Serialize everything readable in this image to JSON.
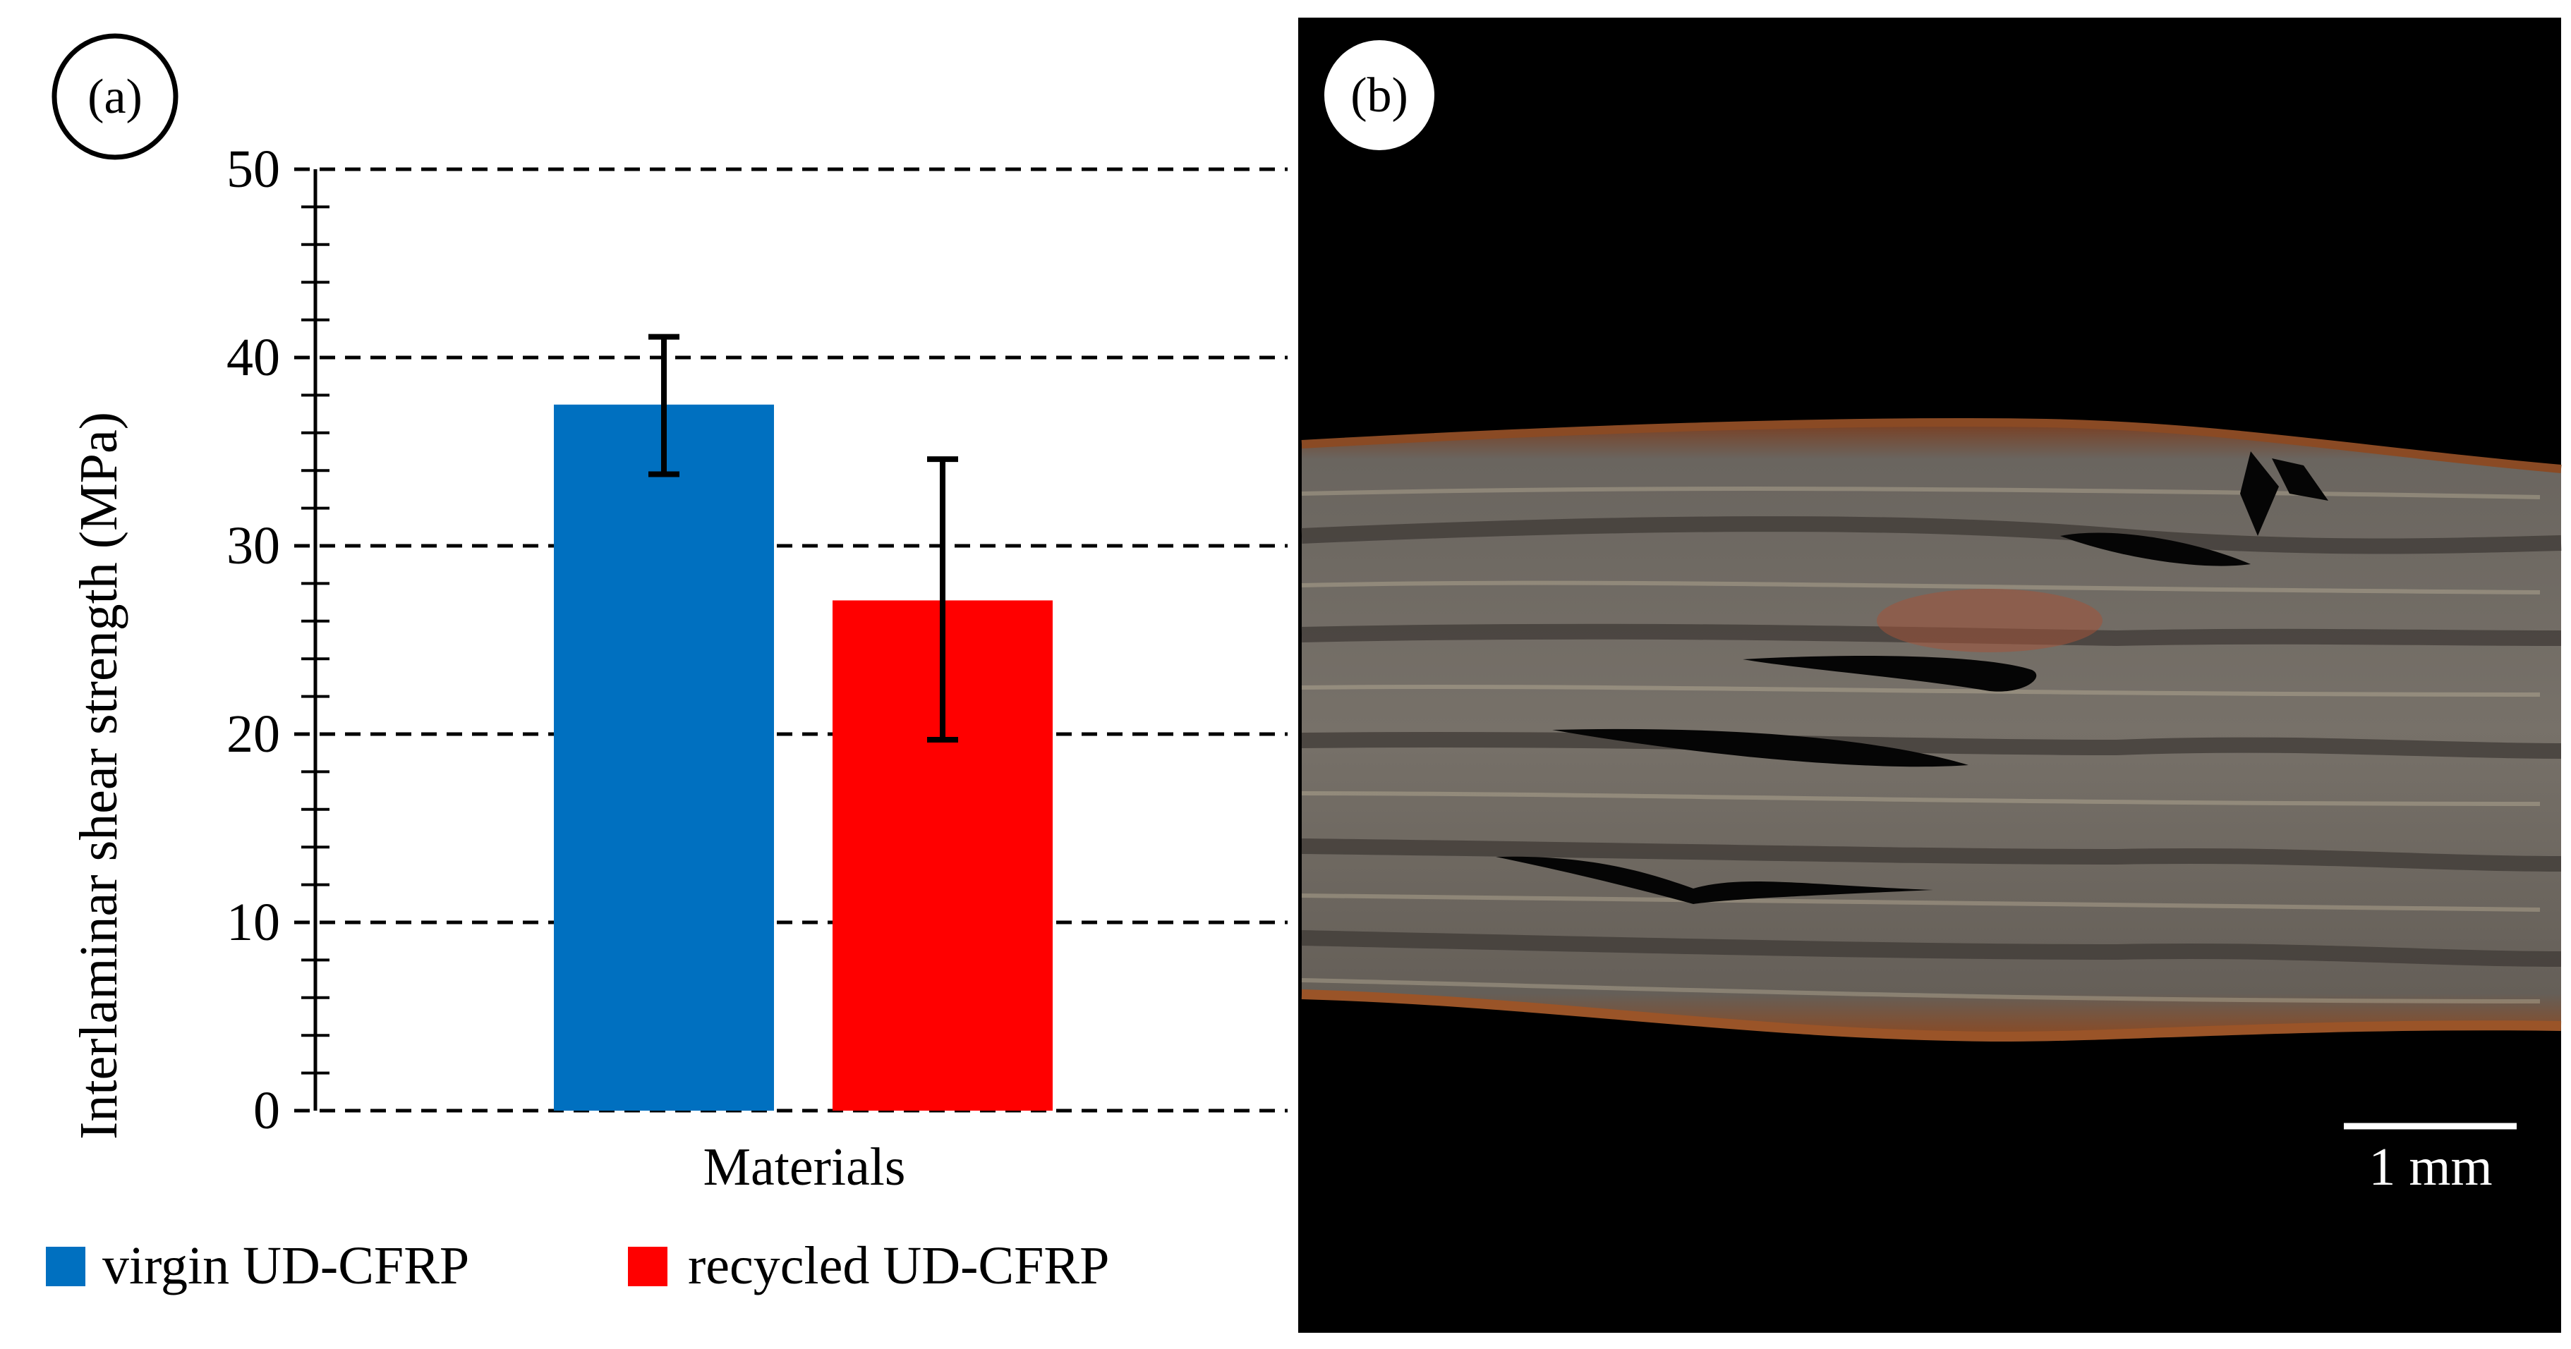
{
  "panel_a": {
    "label": "(a)"
  },
  "panel_b": {
    "label": "(b)",
    "scale_bar_label": "1 mm"
  },
  "chart_data": {
    "type": "bar",
    "categories": [
      "virgin UD-CFRP",
      "recycled UD-CFRP"
    ],
    "series": [
      {
        "name": "virgin UD-CFRP",
        "value": 37.5,
        "error_low": 33.8,
        "error_high": 41.1,
        "color": "#0070C0"
      },
      {
        "name": "recycled UD-CFRP",
        "value": 27.1,
        "error_low": 19.7,
        "error_high": 34.6,
        "color": "#FF0000"
      }
    ],
    "xlabel": "Materials",
    "ylabel": "Interlaminar shear strength (MPa)",
    "ylim": [
      0,
      50
    ],
    "yticks": [
      "0",
      "10",
      "20",
      "30",
      "40",
      "50"
    ],
    "grid": "dashed horizontal",
    "legend_placement": "bottom"
  },
  "colors": {
    "photo_background": "#000000",
    "laminate_gray": "#6c6862",
    "resin_rim": "#7a3f22",
    "fiber_highlight": "#cfc2a6"
  }
}
